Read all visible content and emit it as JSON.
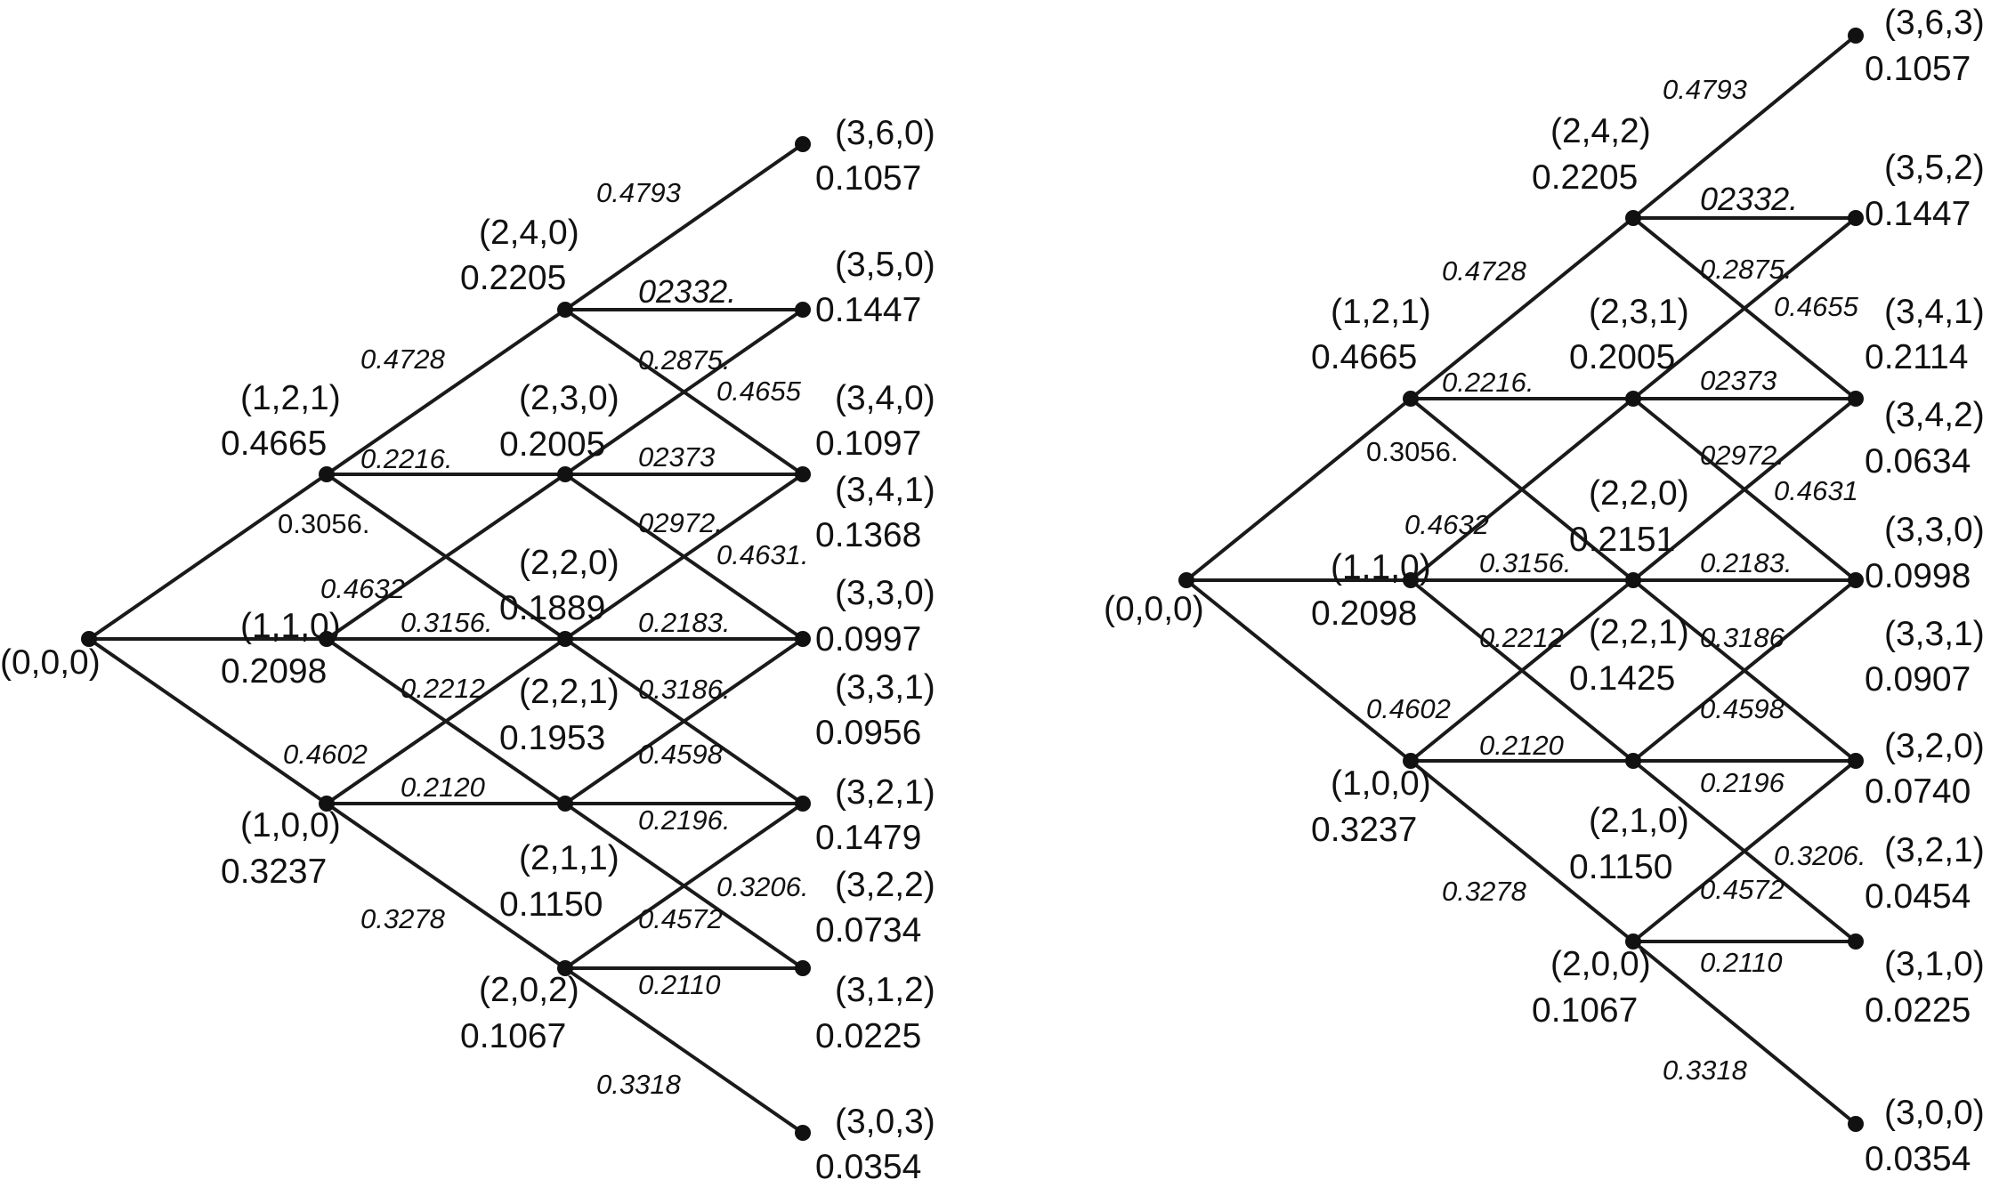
{
  "trees": [
    {
      "nodes": [
        {
          "id": "n000",
          "state": "(0,0,0)",
          "prob": ""
        },
        {
          "id": "n121",
          "state": "(1,2,1)",
          "prob": "0.4665"
        },
        {
          "id": "n110",
          "state": "(1,1,0)",
          "prob": "0.2098"
        },
        {
          "id": "n100",
          "state": "(1,0,0)",
          "prob": "0.3237"
        },
        {
          "id": "n240",
          "state": "(2,4,0)",
          "prob": "0.2205"
        },
        {
          "id": "n230",
          "state": "(2,3,0)",
          "prob": "0.2005"
        },
        {
          "id": "n220",
          "state": "(2,2,0)",
          "prob": "0.1889"
        },
        {
          "id": "n221",
          "state": "(2,2,1)",
          "prob": "0.1953"
        },
        {
          "id": "n211",
          "state": "(2,1,1)",
          "prob": "0.1150"
        },
        {
          "id": "n202",
          "state": "(2,0,2)",
          "prob": "0.1067"
        },
        {
          "id": "n360",
          "state": "(3,6,0)",
          "prob": "0.1057"
        },
        {
          "id": "n350",
          "state": "(3,5,0)",
          "prob": "0.1447"
        },
        {
          "id": "n340",
          "state": "(3,4,0)",
          "prob": "0.1097"
        },
        {
          "id": "n341",
          "state": "(3,4,1)",
          "prob": "0.1368"
        },
        {
          "id": "n330",
          "state": "(3,3,0)",
          "prob": "0.0997"
        },
        {
          "id": "n331",
          "state": "(3,3,1)",
          "prob": "0.0956"
        },
        {
          "id": "n321",
          "state": "(3,2,1)",
          "prob": "0.1479"
        },
        {
          "id": "n322",
          "state": "(3,2,2)",
          "prob": "0.0734"
        },
        {
          "id": "n312",
          "state": "(3,1,2)",
          "prob": "0.0225"
        },
        {
          "id": "n303",
          "state": "(3,0,3)",
          "prob": "0.0354"
        }
      ],
      "edge_labels": [
        "0.4793",
        "02332.",
        "0.4728",
        "0.2875.",
        "0.4655",
        "0.2216.",
        "0.3056.",
        "02373",
        "02972.",
        "0.4631.",
        "0.4632",
        "0.3156.",
        "0.2183.",
        "0.2212",
        "0.3186.",
        "0.4602",
        "0.4598",
        "0.2120",
        "0.2196.",
        "0.3206.",
        "0.4572",
        "0.2110",
        "0.3278",
        "0.3318"
      ]
    },
    {
      "nodes": [
        {
          "id": "n000",
          "state": "(0,0,0)",
          "prob": ""
        },
        {
          "id": "n121",
          "state": "(1,2,1)",
          "prob": "0.4665"
        },
        {
          "id": "n110",
          "state": "(1.1,0)",
          "prob": "0.2098"
        },
        {
          "id": "n100",
          "state": "(1,0,0)",
          "prob": "0.3237"
        },
        {
          "id": "n242",
          "state": "(2,4,2)",
          "prob": "0.2205"
        },
        {
          "id": "n231",
          "state": "(2,3,1)",
          "prob": "0.2005"
        },
        {
          "id": "n220",
          "state": "(2,2,0)",
          "prob": "0.2151"
        },
        {
          "id": "n221",
          "state": "(2,2,1)",
          "prob": "0.1425"
        },
        {
          "id": "n210",
          "state": "(2,1,0)",
          "prob": "0.1150"
        },
        {
          "id": "n200",
          "state": "(2,0,0)",
          "prob": "0.1067"
        },
        {
          "id": "n363",
          "state": "(3,6,3)",
          "prob": "0.1057"
        },
        {
          "id": "n352",
          "state": "(3,5,2)",
          "prob": "0.1447"
        },
        {
          "id": "n341",
          "state": "(3,4,1)",
          "prob": "0.2114"
        },
        {
          "id": "n342",
          "state": "(3,4,2)",
          "prob": "0.0634"
        },
        {
          "id": "n330",
          "state": "(3,3,0)",
          "prob": "0.0998"
        },
        {
          "id": "n331",
          "state": "(3,3,1)",
          "prob": "0.0907"
        },
        {
          "id": "n320",
          "state": "(3,2,0)",
          "prob": "0.0740"
        },
        {
          "id": "n321",
          "state": "(3,2,1)",
          "prob": "0.0454"
        },
        {
          "id": "n310",
          "state": "(3,1,0)",
          "prob": "0.0225"
        },
        {
          "id": "n300",
          "state": "(3,0,0)",
          "prob": "0.0354"
        }
      ],
      "edge_labels": [
        "0.4793",
        "02332.",
        "0.4728",
        "0.2875.",
        "0.4655",
        "0.2216.",
        "0.3056.",
        "02373",
        "02972.",
        "0.4631",
        "0.4632",
        "0.3156.",
        "0.2183.",
        "0.2212",
        "0.3186",
        "0.4602",
        "0.4598",
        "0.2120",
        "0.2196",
        "0.3206.",
        "0.4572",
        "0.2110",
        "0.3278",
        "0.3318"
      ]
    }
  ]
}
